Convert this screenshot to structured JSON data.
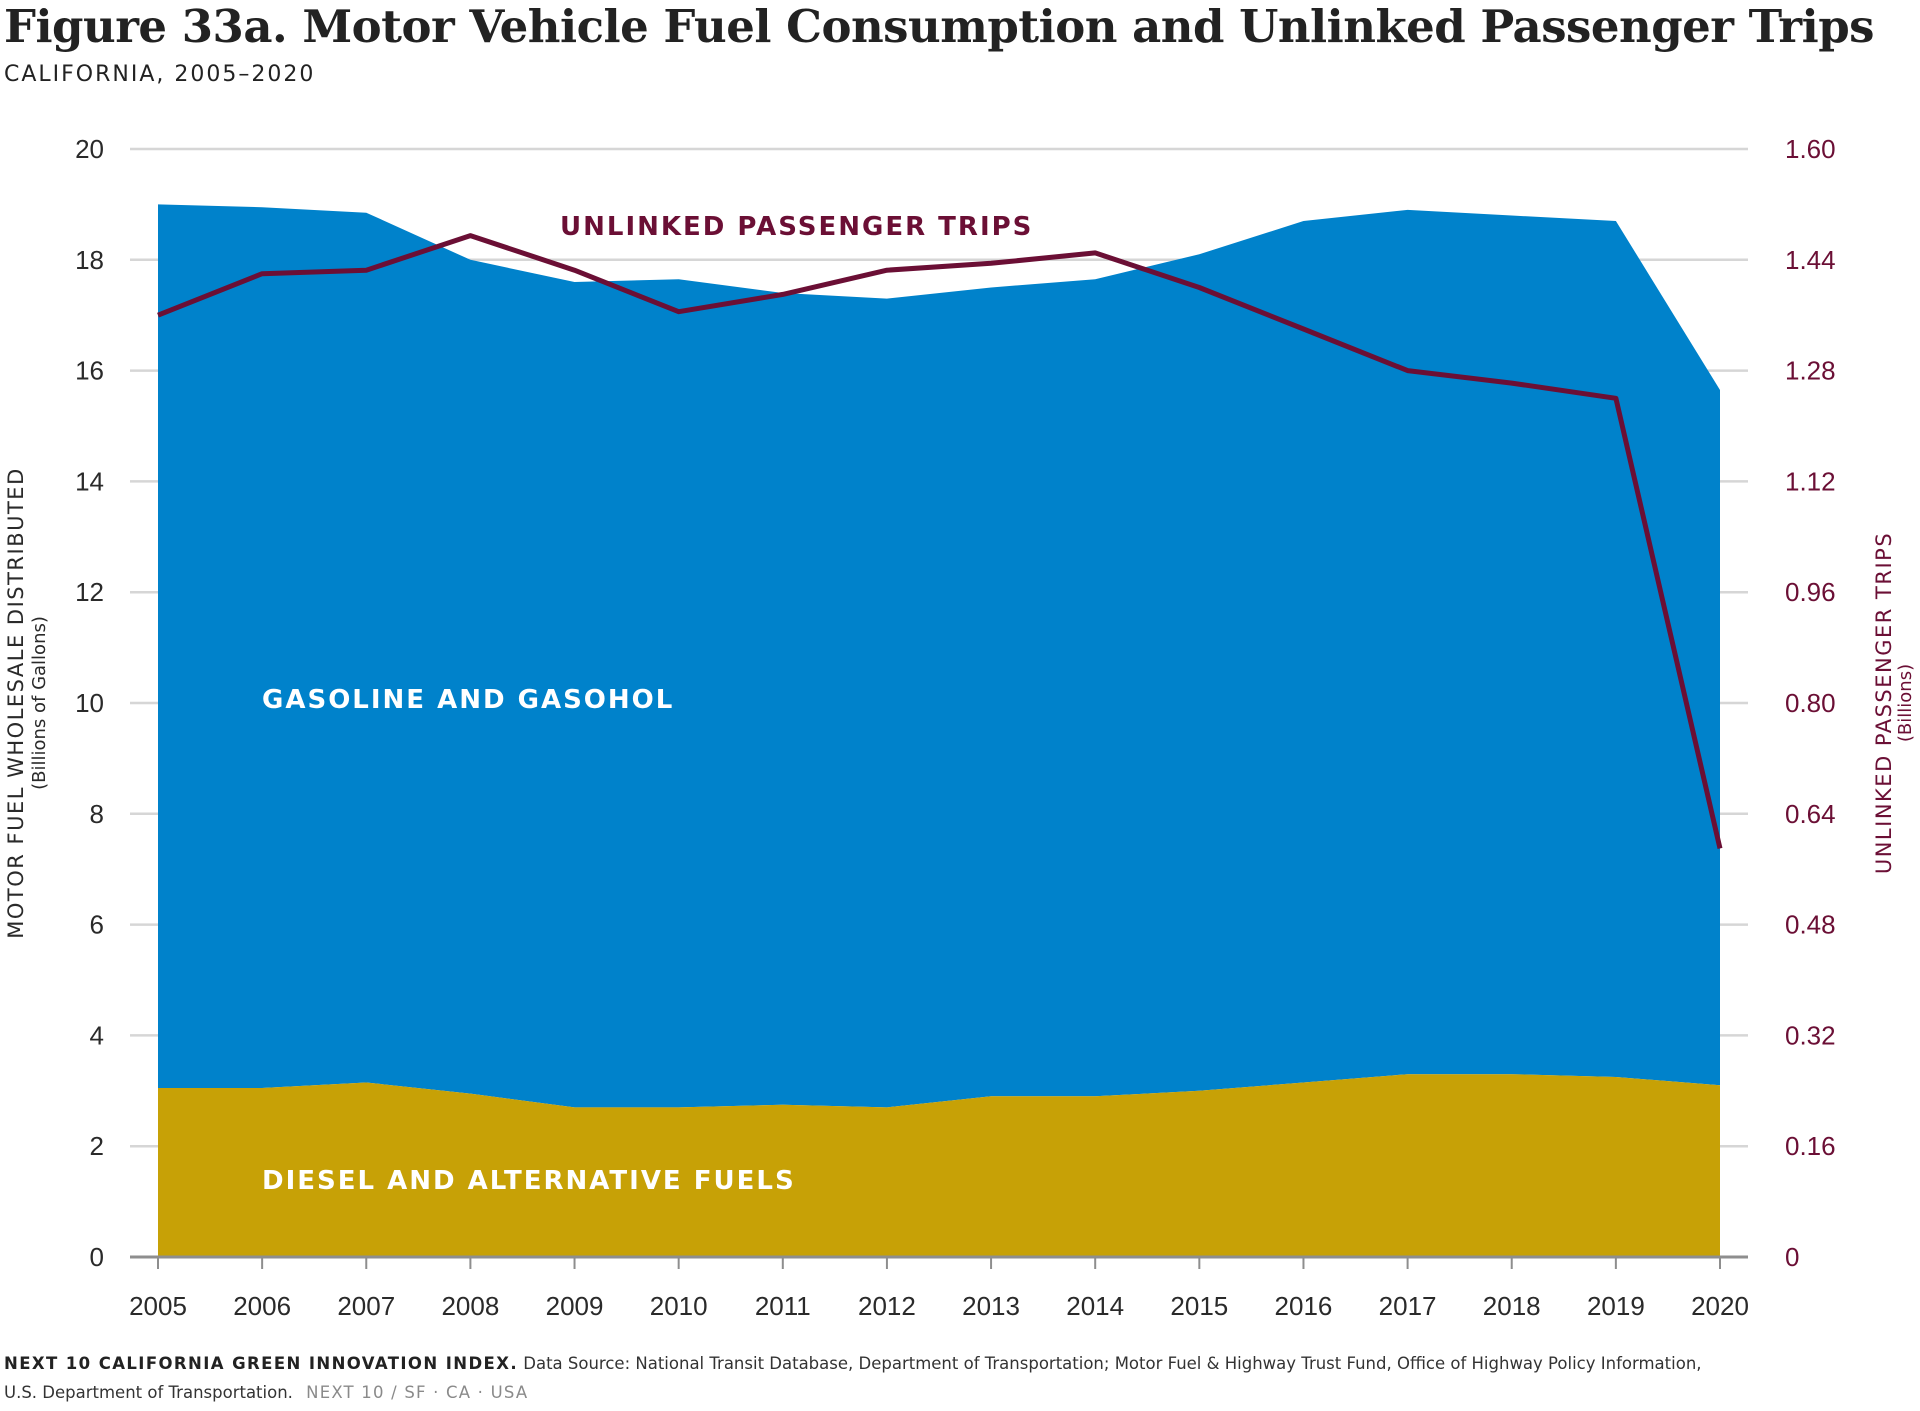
{
  "title": "Figure 33a. Motor Vehicle Fuel Consumption and Unlinked Passenger Trips",
  "subtitle": "CALIFORNIA, 2005–2020",
  "colors": {
    "gasoline": "#0082cb",
    "diesel": "#c7a106",
    "trips": "#6b0f35",
    "grid": "#d6d6d6",
    "axis_text": "#2a2a2a"
  },
  "chart_data": {
    "type": "area",
    "x": [
      2005,
      2006,
      2007,
      2008,
      2009,
      2010,
      2011,
      2012,
      2013,
      2014,
      2015,
      2016,
      2017,
      2018,
      2019,
      2020
    ],
    "series": [
      {
        "name": "DIESEL AND ALTERNATIVE FUELS",
        "kind": "stacked-area",
        "axis": "left",
        "values": [
          3.05,
          3.05,
          3.15,
          2.95,
          2.7,
          2.7,
          2.75,
          2.7,
          2.9,
          2.9,
          3.0,
          3.15,
          3.3,
          3.3,
          3.25,
          3.1
        ]
      },
      {
        "name": "GASOLINE AND GASOHOL",
        "kind": "stacked-area",
        "axis": "left",
        "values": [
          15.95,
          15.9,
          15.7,
          15.05,
          14.9,
          14.95,
          14.65,
          14.6,
          14.6,
          14.75,
          15.1,
          15.55,
          15.6,
          15.5,
          15.45,
          12.55
        ]
      },
      {
        "name": "UNLINKED PASSENGER TRIPS",
        "kind": "line",
        "axis": "right",
        "values": [
          1.36,
          1.42,
          1.425,
          1.475,
          1.425,
          1.365,
          1.39,
          1.425,
          1.435,
          1.45,
          1.4,
          1.34,
          1.28,
          1.262,
          1.24,
          0.59
        ]
      }
    ],
    "y_left": {
      "label": "MOTOR FUEL WHOLESALE DISTRIBUTED",
      "sublabel": "(Billions of Gallons)",
      "range": [
        0,
        20
      ],
      "ticks": [
        "0",
        "2",
        "4",
        "6",
        "8",
        "10",
        "12",
        "14",
        "16",
        "18",
        "20"
      ]
    },
    "y_right": {
      "label": "UNLINKED PASSENGER TRIPS",
      "sublabel": "(Billions)",
      "range": [
        0,
        1.6
      ],
      "ticks": [
        "0",
        "0.16",
        "0.32",
        "0.48",
        "0.64",
        "0.80",
        "0.96",
        "1.12",
        "1.28",
        "1.44",
        "1.60"
      ]
    },
    "x_ticks": [
      "2005",
      "2006",
      "2007",
      "2008",
      "2009",
      "2010",
      "2011",
      "2012",
      "2013",
      "2014",
      "2015",
      "2016",
      "2017",
      "2018",
      "2019",
      "2020"
    ],
    "grid": true,
    "annotations": {
      "trips": "UNLINKED PASSENGER TRIPS",
      "gasoline": "GASOLINE AND GASOHOL",
      "diesel": "DIESEL AND ALTERNATIVE FUELS"
    }
  },
  "footer": {
    "org": "NEXT 10 CALIFORNIA GREEN INNOVATION INDEX.",
    "source_line1": "Data Source: National Transit Database, Department of Transportation; Motor Fuel & Highway Trust Fund, Office of Highway Policy Information,",
    "source_line2": "U.S. Department of Transportation.",
    "brand": "NEXT 10  /  SF · CA · USA"
  }
}
